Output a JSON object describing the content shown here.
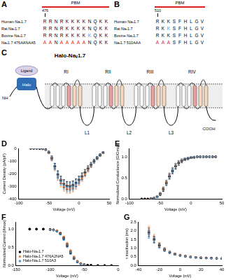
{
  "alignments": [
    {
      "panel": "A",
      "label": "PBM",
      "position": "476",
      "rows": [
        {
          "name": "Human Naᵥ1.7",
          "residues": "RRNRKKKKNQKK"
        },
        {
          "name": "Rat Naᵥ1.7",
          "residues": "RRNRKKKKNQKK"
        },
        {
          "name": "Bovine Naᵥ1.7",
          "residues": "RRNRKKKKKQKK",
          "colors": [
            null,
            null,
            null,
            null,
            null,
            null,
            null,
            null,
            "#3b8ed6",
            null,
            null,
            null
          ]
        },
        {
          "name": "Naᵥ1.7 476AANAA5",
          "residues": "AANAAAAANQKK",
          "colors": [
            "#e02020",
            "#e02020",
            null,
            "#e02020",
            "#e02020",
            "#e02020",
            "#e02020",
            "#e02020",
            null,
            null,
            null,
            null
          ]
        }
      ]
    },
    {
      "panel": "B",
      "label": "PBM",
      "position": "510",
      "rows": [
        {
          "name": "Human Naᵥ1.7",
          "residues": "RKKSFHLGV"
        },
        {
          "name": "Rat Naᵥ1.7",
          "residues": "RKKSFHLGV",
          "colors": [
            null,
            null,
            "#3b8ed6",
            null,
            null,
            null,
            null,
            null,
            null
          ]
        },
        {
          "name": "Bovine Naᵥ1.7",
          "residues": "RKKSFHLGV"
        },
        {
          "name": "Naᵥ1.7 510AAA",
          "residues": "AAASFHLGV",
          "colors": [
            "#e02020",
            "#e02020",
            "#e02020",
            null,
            null,
            null,
            null,
            null,
            null
          ]
        }
      ]
    }
  ],
  "diagram": {
    "panel": "C",
    "title": "Halo-Naᵥ1.7",
    "n_terminus": "NH",
    "c_terminus": "COOH",
    "tag": "Halo",
    "ligand": "Ligand",
    "domains": [
      "RI",
      "RII",
      "RIII",
      "RIV"
    ],
    "loops": [
      "L1",
      "L2",
      "L3"
    ]
  },
  "chart_data": [
    {
      "panel": "D",
      "type": "scatter",
      "x_label": "Voltage (mV)",
      "y_label": "Current Density (pA/pF)",
      "xlim": [
        -100,
        50
      ],
      "xticks": [
        -100,
        -50,
        0,
        50
      ],
      "ylim": [
        -400,
        0
      ],
      "yticks": [
        -400,
        -300,
        -200,
        -100,
        0
      ],
      "grid": false,
      "x": [
        -80,
        -75,
        -70,
        -65,
        -60,
        -55,
        -50,
        -45,
        -40,
        -35,
        -30,
        -25,
        -20,
        -15,
        -10,
        -5,
        0,
        5,
        10,
        15,
        20,
        25,
        30,
        35,
        40
      ],
      "series": [
        {
          "color": "#000000",
          "marker": "circle",
          "values": [
            0,
            0,
            0,
            -1,
            -3,
            -10,
            -30,
            -75,
            -140,
            -205,
            -250,
            -280,
            -295,
            -298,
            -290,
            -272,
            -248,
            -220,
            -190,
            -158,
            -128,
            -100,
            -75,
            -52,
            -32
          ],
          "errors": [
            1,
            1,
            1,
            1,
            2,
            4,
            8,
            15,
            22,
            28,
            30,
            32,
            33,
            33,
            32,
            30,
            28,
            26,
            23,
            20,
            17,
            14,
            11,
            9,
            7
          ]
        },
        {
          "color": "#f0894f",
          "marker": "circle",
          "values": [
            0,
            0,
            0,
            -1,
            -4,
            -12,
            -35,
            -85,
            -155,
            -225,
            -275,
            -305,
            -320,
            -322,
            -312,
            -292,
            -265,
            -235,
            -202,
            -168,
            -136,
            -106,
            -80,
            -56,
            -35
          ],
          "errors": [
            1,
            1,
            1,
            1,
            2,
            4,
            8,
            15,
            22,
            28,
            30,
            32,
            33,
            33,
            32,
            30,
            28,
            26,
            23,
            20,
            17,
            14,
            11,
            9,
            7
          ]
        },
        {
          "color": "#4a9ad8",
          "marker": "circle",
          "values": [
            0,
            0,
            0,
            -1,
            -3,
            -11,
            -32,
            -80,
            -148,
            -215,
            -262,
            -292,
            -308,
            -310,
            -300,
            -280,
            -255,
            -226,
            -195,
            -162,
            -131,
            -102,
            -77,
            -54,
            -33
          ],
          "errors": [
            1,
            1,
            1,
            1,
            2,
            4,
            8,
            15,
            22,
            28,
            30,
            32,
            33,
            33,
            32,
            30,
            28,
            26,
            23,
            20,
            17,
            14,
            11,
            9,
            7
          ]
        }
      ]
    },
    {
      "panel": "E",
      "type": "scatter",
      "x_label": "Voltage (mV)",
      "y_label": "Normalized Conductance (G/Gmax)",
      "xlim": [
        -100,
        50
      ],
      "xticks": [
        -100,
        -50,
        0,
        50
      ],
      "ylim": [
        0,
        1.2
      ],
      "yticks": [
        {
          "value": 0,
          "label": "0.0"
        },
        {
          "value": 0.5,
          "label": "0.5"
        },
        {
          "value": 1,
          "label": "1.0"
        }
      ],
      "grid": false,
      "x": [
        -80,
        -75,
        -70,
        -65,
        -60,
        -55,
        -50,
        -45,
        -40,
        -35,
        -30,
        -25,
        -20,
        -15,
        -10,
        -5,
        0,
        5,
        10,
        15,
        20,
        25,
        30,
        35,
        40
      ],
      "series": [
        {
          "color": "#000000",
          "marker": "circle",
          "values": [
            0,
            0,
            0,
            0.01,
            0.02,
            0.05,
            0.11,
            0.22,
            0.37,
            0.53,
            0.66,
            0.77,
            0.85,
            0.9,
            0.94,
            0.96,
            0.98,
            0.99,
            1,
            1,
            1,
            1,
            1,
            1,
            1
          ],
          "errors": [
            0,
            0,
            0,
            0.01,
            0.01,
            0.02,
            0.03,
            0.04,
            0.05,
            0.06,
            0.06,
            0.06,
            0.05,
            0.04,
            0.03,
            0.03,
            0.02,
            0.02,
            0.01,
            0.01,
            0.01,
            0.01,
            0.01,
            0.01,
            0.01
          ]
        },
        {
          "color": "#f0894f",
          "marker": "circle",
          "values": [
            0,
            0,
            0,
            0.01,
            0.02,
            0.06,
            0.13,
            0.25,
            0.4,
            0.56,
            0.69,
            0.79,
            0.86,
            0.91,
            0.94,
            0.96,
            0.98,
            0.99,
            1,
            1,
            1,
            1,
            1,
            1,
            1
          ],
          "errors": [
            0,
            0,
            0,
            0.01,
            0.01,
            0.02,
            0.03,
            0.04,
            0.05,
            0.06,
            0.06,
            0.06,
            0.05,
            0.04,
            0.03,
            0.03,
            0.02,
            0.02,
            0.01,
            0.01,
            0.01,
            0.01,
            0.01,
            0.01,
            0.01
          ]
        },
        {
          "color": "#4a9ad8",
          "marker": "circle",
          "values": [
            0,
            0,
            0,
            0.01,
            0.02,
            0.05,
            0.12,
            0.24,
            0.39,
            0.55,
            0.68,
            0.78,
            0.86,
            0.91,
            0.94,
            0.96,
            0.98,
            0.99,
            1,
            1,
            1,
            1,
            1,
            1,
            1
          ],
          "errors": [
            0,
            0,
            0,
            0.01,
            0.01,
            0.02,
            0.03,
            0.04,
            0.05,
            0.06,
            0.06,
            0.06,
            0.05,
            0.04,
            0.03,
            0.03,
            0.02,
            0.02,
            0.01,
            0.01,
            0.01,
            0.01,
            0.01,
            0.01,
            0.01
          ]
        }
      ]
    },
    {
      "panel": "F",
      "type": "scatter",
      "x_label": "Voltage (mV)",
      "y_label": "Normalized Current (I/Imax)",
      "xlim": [
        -150,
        0
      ],
      "xticks": [
        -150,
        -100,
        -50,
        0
      ],
      "ylim": [
        0,
        1.2
      ],
      "yticks": [
        {
          "value": 0,
          "label": "0.0"
        },
        {
          "value": 0.5,
          "label": "0.5"
        },
        {
          "value": 1,
          "label": "1.0"
        }
      ],
      "grid": false,
      "legend": "lower left",
      "x": [
        -130,
        -120,
        -110,
        -100,
        -95,
        -90,
        -85,
        -80,
        -75,
        -70,
        -65,
        -60,
        -55,
        -50,
        -45,
        -40,
        -30,
        -20,
        -10
      ],
      "series": [
        {
          "name": "Halo-Naᵥ1.7",
          "color": "#000000",
          "marker": "circle",
          "values": [
            1,
            1,
            1,
            0.99,
            0.98,
            0.95,
            0.88,
            0.75,
            0.56,
            0.36,
            0.2,
            0.1,
            0.05,
            0.02,
            0.01,
            0.01,
            0,
            0,
            0
          ],
          "errors": [
            0,
            0,
            0,
            0.01,
            0.01,
            0.01,
            0.02,
            0.03,
            0.04,
            0.04,
            0.03,
            0.02,
            0.01,
            0.01,
            0,
            0,
            0,
            0,
            0
          ]
        },
        {
          "name": "Halo-Naᵥ1.7 476A2NA5",
          "color": "#f0894f",
          "marker": "circle",
          "values": [
            1,
            1,
            1,
            0.99,
            0.98,
            0.96,
            0.9,
            0.78,
            0.6,
            0.4,
            0.23,
            0.12,
            0.06,
            0.03,
            0.01,
            0.01,
            0,
            0,
            0
          ],
          "errors": [
            0,
            0,
            0,
            0.01,
            0.01,
            0.01,
            0.02,
            0.03,
            0.04,
            0.04,
            0.03,
            0.02,
            0.01,
            0.01,
            0,
            0,
            0,
            0,
            0
          ]
        },
        {
          "name": "Halo-Naᵥ1.7 510A3",
          "color": "#4a9ad8",
          "marker": "circle",
          "values": [
            1,
            1,
            1,
            0.99,
            0.97,
            0.94,
            0.86,
            0.72,
            0.53,
            0.34,
            0.19,
            0.09,
            0.04,
            0.02,
            0.01,
            0,
            0,
            0,
            0
          ],
          "errors": [
            0,
            0,
            0,
            0.01,
            0.01,
            0.01,
            0.02,
            0.03,
            0.04,
            0.04,
            0.03,
            0.02,
            0.01,
            0.01,
            0,
            0,
            0,
            0,
            0
          ]
        }
      ]
    },
    {
      "panel": "G",
      "type": "scatter",
      "x_label": "Voltage (mV)",
      "y_label": "τ inactivation (ms)",
      "xlim": [
        -40,
        40
      ],
      "xticks": [
        -40,
        -20,
        0,
        20,
        40
      ],
      "ylim": [
        0,
        2.5
      ],
      "yticks": [
        {
          "value": 0,
          "label": "0.0"
        },
        {
          "value": 0.5,
          "label": "0.5"
        },
        {
          "value": 1,
          "label": "1.0"
        },
        {
          "value": 1.5,
          "label": "1.5"
        },
        {
          "value": 2,
          "label": "2.0"
        },
        {
          "value": 2.5,
          "label": "2.5"
        }
      ],
      "grid": false,
      "x": [
        -30,
        -25,
        -20,
        -15,
        -10,
        -5,
        0,
        5,
        10,
        15,
        20,
        25,
        30,
        35,
        40
      ],
      "series": [
        {
          "color": "#000000",
          "marker": "circle",
          "values": [
            1.9,
            1.5,
            1.15,
            0.9,
            0.75,
            0.65,
            0.58,
            0.53,
            0.49,
            0.46,
            0.44,
            0.43,
            0.42,
            0.41,
            0.4
          ],
          "errors": [
            0.25,
            0.18,
            0.12,
            0.08,
            0.06,
            0.05,
            0.04,
            0.03,
            0.03,
            0.03,
            0.02,
            0.02,
            0.02,
            0.02,
            0.02
          ]
        },
        {
          "color": "#f0894f",
          "marker": "circle",
          "values": [
            2.0,
            1.6,
            1.2,
            0.95,
            0.78,
            0.67,
            0.6,
            0.54,
            0.5,
            0.47,
            0.45,
            0.43,
            0.42,
            0.41,
            0.4
          ],
          "errors": [
            0.25,
            0.18,
            0.12,
            0.08,
            0.06,
            0.05,
            0.04,
            0.03,
            0.03,
            0.03,
            0.02,
            0.02,
            0.02,
            0.02,
            0.02
          ]
        },
        {
          "color": "#4a9ad8",
          "marker": "circle",
          "values": [
            1.8,
            1.45,
            1.1,
            0.88,
            0.73,
            0.64,
            0.57,
            0.52,
            0.48,
            0.46,
            0.44,
            0.42,
            0.41,
            0.4,
            0.4
          ],
          "errors": [
            0.25,
            0.18,
            0.12,
            0.08,
            0.06,
            0.05,
            0.04,
            0.03,
            0.03,
            0.03,
            0.02,
            0.02,
            0.02,
            0.02,
            0.02
          ]
        }
      ]
    }
  ]
}
